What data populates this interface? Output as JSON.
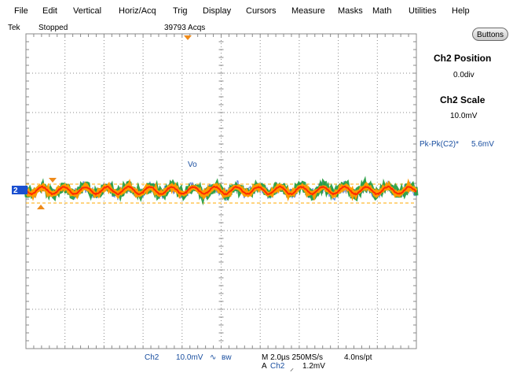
{
  "menu": [
    "File",
    "Edit",
    "Vertical",
    "Horiz/Acq",
    "Trig",
    "Display",
    "Cursors",
    "Measure",
    "Masks",
    "Math",
    "Utilities",
    "Help"
  ],
  "status": {
    "brand": "Tek",
    "run_state": "Stopped",
    "acqs": "39793 Acqs"
  },
  "buttons_label": "Buttons",
  "side_panel": {
    "position_title": "Ch2 Position",
    "position_value": "0.0div",
    "scale_title": "Ch2 Scale",
    "scale_value": "10.0mV"
  },
  "measurement": {
    "label": "Pk-Pk(C2)*",
    "value": "5.6mV"
  },
  "waveform": {
    "label": "Vo",
    "channel_marker": "2"
  },
  "bottom": {
    "channel": "Ch2",
    "scale": "10.0mV",
    "bw": "ʙw",
    "timebase": "M 2.0µs 250MS/s",
    "resolution": "4.0ns/pt",
    "trigger_prefix": "A",
    "trigger_channel": "Ch2",
    "trigger_level": "1.2mV"
  },
  "colors": {
    "grid": "#8a8a8a",
    "trace_core": "#ff2a00",
    "trace_mid": "#ff9a00",
    "trace_outer": "#1e9b3c",
    "trace_noise": "#2a5fd0",
    "ref_line": "#ffaa00",
    "marker": "#ee8a1a"
  }
}
